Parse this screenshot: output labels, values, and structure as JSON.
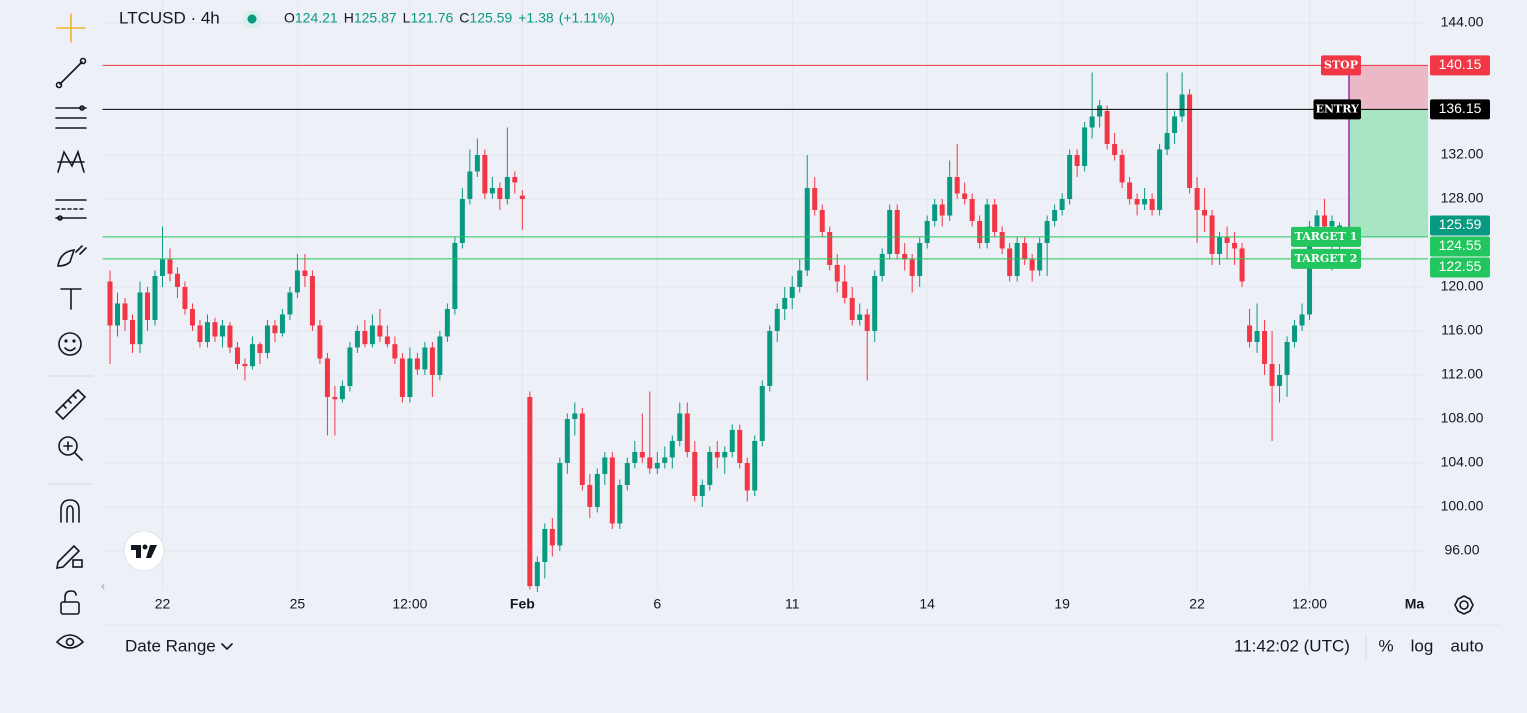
{
  "chart_data": {
    "type": "candlestick",
    "title": "LTCUSD · 4h",
    "ohlc_names": [
      "O",
      "H",
      "L",
      "C"
    ],
    "change_label": "+1.38",
    "change_pct_label": "(+1.11%)",
    "up_color": "#089981",
    "down_color": "#f23645",
    "xlim": [
      -1,
      175.4
    ],
    "ylim": [
      92.45,
      146.09
    ],
    "xticks": [
      {
        "value": 7,
        "label": "22"
      },
      {
        "value": 25,
        "label": "25"
      },
      {
        "value": 40,
        "label": "12:00"
      },
      {
        "value": 55,
        "label": "Feb"
      },
      {
        "value": 73,
        "label": "6"
      },
      {
        "value": 91,
        "label": "11"
      },
      {
        "value": 109,
        "label": "14"
      },
      {
        "value": 127,
        "label": "19"
      },
      {
        "value": 145,
        "label": "22"
      },
      {
        "value": 160,
        "label": "12:00"
      },
      {
        "value": 174,
        "label": "Ma"
      }
    ],
    "yticks": [
      {
        "value": 144,
        "label": "144.00"
      },
      {
        "value": 132,
        "label": "132.00"
      },
      {
        "value": 128,
        "label": "128.00"
      },
      {
        "value": 120,
        "label": "120.00"
      },
      {
        "value": 116,
        "label": "116.00"
      },
      {
        "value": 112,
        "label": "112.00"
      },
      {
        "value": 108,
        "label": "108.00"
      },
      {
        "value": 104,
        "label": "104.00"
      },
      {
        "value": 100,
        "label": "100.00"
      },
      {
        "value": 96,
        "label": "96.00"
      }
    ],
    "grid": true,
    "levels": [
      {
        "label": "STOP",
        "value": 140.15,
        "color": "#f23645"
      },
      {
        "label": "ENTRY",
        "value": 136.15,
        "color": "#000000"
      },
      {
        "label": "TARGET 1",
        "value": 124.55,
        "color": "#22c55e"
      },
      {
        "label": "TARGET 2",
        "value": 122.55,
        "color": "#22c55e"
      }
    ],
    "candles": [
      [
        120.5,
        121.5,
        113.0,
        116.5
      ],
      [
        116.5,
        119.5,
        115.5,
        118.5
      ],
      [
        118.5,
        119.0,
        116.0,
        117.0
      ],
      [
        117.0,
        117.5,
        114.0,
        114.8
      ],
      [
        114.8,
        120.5,
        114.0,
        119.5
      ],
      [
        119.5,
        120.0,
        116.0,
        117.0
      ],
      [
        117.0,
        121.5,
        116.5,
        121.0
      ],
      [
        121.0,
        125.5,
        120.0,
        122.5
      ],
      [
        122.5,
        123.5,
        120.5,
        121.2
      ],
      [
        121.2,
        121.8,
        119.0,
        120.0
      ],
      [
        120.0,
        120.5,
        117.5,
        118.0
      ],
      [
        118.0,
        118.5,
        116.0,
        116.5
      ],
      [
        116.5,
        117.0,
        114.5,
        115.0
      ],
      [
        115.0,
        117.5,
        114.5,
        116.8
      ],
      [
        116.8,
        117.2,
        115.0,
        115.5
      ],
      [
        115.5,
        117.0,
        114.5,
        116.5
      ],
      [
        116.5,
        116.8,
        114.0,
        114.5
      ],
      [
        114.5,
        115.0,
        112.5,
        113.0
      ],
      [
        113.0,
        113.5,
        111.5,
        112.8
      ],
      [
        112.8,
        115.5,
        112.5,
        114.8
      ],
      [
        114.8,
        115.0,
        113.0,
        114.0
      ],
      [
        114.0,
        117.0,
        113.5,
        116.5
      ],
      [
        116.5,
        117.0,
        115.0,
        115.8
      ],
      [
        115.8,
        118.0,
        115.5,
        117.5
      ],
      [
        117.5,
        120.0,
        117.0,
        119.5
      ],
      [
        119.5,
        123.0,
        119.0,
        121.5
      ],
      [
        121.5,
        123.0,
        120.0,
        121.0
      ],
      [
        121.0,
        121.5,
        116.0,
        116.5
      ],
      [
        116.5,
        117.0,
        113.0,
        113.5
      ],
      [
        113.5,
        114.0,
        106.5,
        110.0
      ],
      [
        110.0,
        111.0,
        106.5,
        109.8
      ],
      [
        109.8,
        111.5,
        109.5,
        111.0
      ],
      [
        111.0,
        115.0,
        110.5,
        114.5
      ],
      [
        114.5,
        116.5,
        114.0,
        116.0
      ],
      [
        116.0,
        117.0,
        114.5,
        114.8
      ],
      [
        114.8,
        117.5,
        114.5,
        116.5
      ],
      [
        116.5,
        118.0,
        115.0,
        115.5
      ],
      [
        115.5,
        116.5,
        114.5,
        114.8
      ],
      [
        114.8,
        115.5,
        113.0,
        113.5
      ],
      [
        113.5,
        114.0,
        109.5,
        110.0
      ],
      [
        110.0,
        114.5,
        109.5,
        113.5
      ],
      [
        113.5,
        114.0,
        112.0,
        112.5
      ],
      [
        112.5,
        115.0,
        112.0,
        114.5
      ],
      [
        114.5,
        115.0,
        110.0,
        112.0
      ],
      [
        112.0,
        116.0,
        111.5,
        115.5
      ],
      [
        115.5,
        118.5,
        115.0,
        118.0
      ],
      [
        118.0,
        124.5,
        117.5,
        124.0
      ],
      [
        124.0,
        129.0,
        123.5,
        128.0
      ],
      [
        128.0,
        132.5,
        127.5,
        130.5
      ],
      [
        130.5,
        133.5,
        130.0,
        132.0
      ],
      [
        132.0,
        132.5,
        128.0,
        128.5
      ],
      [
        128.5,
        130.0,
        128.0,
        129.0
      ],
      [
        129.0,
        129.5,
        127.0,
        128.0
      ],
      [
        128.0,
        134.5,
        127.5,
        130.0
      ],
      [
        130.0,
        130.5,
        128.5,
        129.5
      ],
      [
        128.3,
        128.8,
        125.2,
        128.0
      ],
      [
        110.0,
        110.5,
        92.5,
        92.8
      ],
      [
        92.8,
        95.5,
        92.0,
        95.0
      ],
      [
        95.0,
        98.5,
        93.5,
        98.0
      ],
      [
        98.0,
        99.0,
        95.5,
        96.5
      ],
      [
        96.5,
        104.5,
        96.0,
        104.0
      ],
      [
        104.0,
        108.5,
        103.0,
        108.0
      ],
      [
        108.0,
        109.5,
        106.5,
        108.5
      ],
      [
        108.5,
        109.0,
        101.5,
        102.0
      ],
      [
        102.0,
        103.0,
        99.0,
        100.0
      ],
      [
        100.0,
        103.5,
        99.5,
        103.0
      ],
      [
        103.0,
        105.0,
        102.0,
        104.5
      ],
      [
        104.5,
        105.0,
        98.0,
        98.5
      ],
      [
        98.5,
        102.5,
        98.0,
        102.0
      ],
      [
        102.0,
        104.5,
        101.5,
        104.0
      ],
      [
        104.0,
        106.0,
        103.5,
        105.0
      ],
      [
        105.0,
        108.5,
        104.0,
        104.5
      ],
      [
        104.5,
        110.5,
        103.0,
        103.5
      ],
      [
        103.5,
        105.0,
        103.0,
        104.0
      ],
      [
        104.0,
        105.5,
        103.5,
        104.5
      ],
      [
        104.5,
        106.5,
        103.5,
        106.0
      ],
      [
        106.0,
        109.5,
        105.5,
        108.5
      ],
      [
        108.5,
        109.5,
        104.5,
        105.0
      ],
      [
        105.0,
        106.0,
        100.5,
        101.0
      ],
      [
        101.0,
        102.5,
        100.0,
        102.0
      ],
      [
        102.0,
        105.5,
        101.5,
        105.0
      ],
      [
        105.0,
        106.0,
        103.5,
        104.5
      ],
      [
        104.5,
        105.5,
        103.0,
        105.0
      ],
      [
        105.0,
        107.5,
        104.5,
        107.0
      ],
      [
        107.0,
        107.5,
        103.5,
        104.0
      ],
      [
        104.0,
        104.5,
        100.5,
        101.5
      ],
      [
        101.5,
        106.5,
        101.0,
        106.0
      ],
      [
        106.0,
        111.5,
        105.5,
        111.0
      ],
      [
        111.0,
        116.5,
        110.5,
        116.0
      ],
      [
        116.0,
        118.5,
        115.0,
        118.0
      ],
      [
        118.0,
        120.0,
        117.0,
        119.0
      ],
      [
        119.0,
        121.0,
        118.0,
        120.0
      ],
      [
        120.0,
        122.5,
        119.5,
        121.5
      ],
      [
        121.5,
        132.0,
        121.0,
        129.0
      ],
      [
        129.0,
        130.0,
        126.5,
        127.0
      ],
      [
        127.0,
        127.5,
        124.5,
        125.0
      ],
      [
        125.0,
        125.5,
        121.5,
        122.0
      ],
      [
        122.0,
        123.0,
        119.5,
        120.5
      ],
      [
        120.5,
        122.0,
        118.5,
        119.0
      ],
      [
        119.0,
        120.0,
        116.5,
        117.0
      ],
      [
        117.0,
        118.5,
        116.5,
        117.5
      ],
      [
        117.5,
        118.0,
        111.5,
        116.0
      ],
      [
        116.0,
        121.5,
        115.0,
        121.0
      ],
      [
        121.0,
        123.5,
        120.5,
        123.0
      ],
      [
        123.0,
        127.5,
        122.5,
        127.0
      ],
      [
        127.0,
        127.5,
        122.5,
        123.0
      ],
      [
        123.0,
        124.0,
        121.5,
        122.5
      ],
      [
        122.5,
        123.0,
        119.5,
        121.0
      ],
      [
        121.0,
        124.5,
        120.0,
        124.0
      ],
      [
        124.0,
        126.5,
        123.5,
        126.0
      ],
      [
        126.0,
        128.0,
        125.5,
        127.5
      ],
      [
        127.5,
        128.0,
        125.5,
        126.5
      ],
      [
        126.5,
        131.5,
        126.0,
        130.0
      ],
      [
        130.0,
        133.0,
        128.0,
        128.5
      ],
      [
        128.5,
        129.5,
        127.5,
        128.0
      ],
      [
        128.0,
        128.5,
        125.5,
        126.0
      ],
      [
        126.0,
        126.5,
        123.5,
        124.0
      ],
      [
        124.0,
        128.0,
        123.5,
        127.5
      ],
      [
        127.5,
        128.0,
        124.5,
        125.0
      ],
      [
        125.0,
        125.5,
        123.0,
        123.5
      ],
      [
        123.5,
        124.0,
        120.5,
        121.0
      ],
      [
        121.0,
        124.5,
        120.5,
        124.0
      ],
      [
        124.0,
        124.5,
        122.0,
        122.5
      ],
      [
        122.5,
        123.0,
        120.5,
        121.5
      ],
      [
        121.5,
        124.5,
        121.0,
        124.0
      ],
      [
        124.0,
        126.5,
        121.0,
        126.0
      ],
      [
        126.0,
        127.5,
        125.5,
        127.0
      ],
      [
        127.0,
        128.5,
        126.5,
        128.0
      ],
      [
        128.0,
        132.5,
        127.5,
        132.0
      ],
      [
        132.0,
        132.5,
        130.0,
        131.0
      ],
      [
        131.0,
        135.0,
        130.5,
        134.5
      ],
      [
        134.5,
        139.5,
        133.5,
        135.5
      ],
      [
        135.5,
        137.0,
        134.5,
        136.5
      ],
      [
        136.0,
        136.5,
        132.5,
        133.0
      ],
      [
        133.0,
        134.0,
        131.5,
        132.0
      ],
      [
        132.0,
        132.5,
        129.0,
        129.5
      ],
      [
        129.5,
        130.0,
        127.5,
        128.0
      ],
      [
        128.0,
        128.5,
        126.5,
        127.5
      ],
      [
        127.5,
        129.0,
        127.0,
        128.0
      ],
      [
        128.0,
        128.5,
        126.5,
        127.0
      ],
      [
        127.0,
        133.0,
        126.5,
        132.5
      ],
      [
        132.5,
        139.5,
        132.0,
        134.0
      ],
      [
        134.0,
        136.0,
        133.0,
        135.5
      ],
      [
        135.5,
        139.5,
        135.0,
        137.5
      ],
      [
        137.5,
        138.0,
        128.5,
        129.0
      ],
      [
        129.0,
        130.0,
        124.0,
        127.0
      ],
      [
        127.0,
        129.0,
        125.0,
        126.5
      ],
      [
        126.5,
        127.0,
        122.0,
        123.0
      ],
      [
        123.0,
        125.0,
        122.0,
        124.5
      ],
      [
        124.5,
        125.5,
        122.5,
        124.0
      ],
      [
        124.0,
        125.0,
        122.0,
        123.5
      ],
      [
        123.5,
        124.0,
        120.0,
        120.5
      ],
      [
        116.5,
        118.0,
        114.5,
        115.0
      ],
      [
        115.0,
        118.5,
        114.0,
        116.0
      ],
      [
        116.0,
        117.0,
        112.0,
        113.0
      ],
      [
        113.0,
        116.0,
        106.0,
        111.0
      ],
      [
        111.0,
        113.0,
        109.5,
        112.0
      ],
      [
        112.0,
        115.5,
        110.0,
        115.0
      ],
      [
        115.0,
        117.0,
        114.5,
        116.5
      ],
      [
        116.5,
        118.5,
        116.0,
        117.5
      ],
      [
        117.5,
        126.0,
        117.0,
        125.5
      ],
      [
        125.5,
        127.0,
        124.5,
        126.5
      ],
      [
        126.5,
        128.0,
        124.0,
        125.5
      ],
      [
        125.5,
        126.5,
        121.5,
        126.0
      ],
      [
        124.21,
        125.87,
        121.76,
        125.59
      ]
    ],
    "date_range_label": "Date Range",
    "clock": "11:42:02 (UTC)",
    "scale_buttons": [
      "%",
      "log",
      "auto"
    ]
  }
}
